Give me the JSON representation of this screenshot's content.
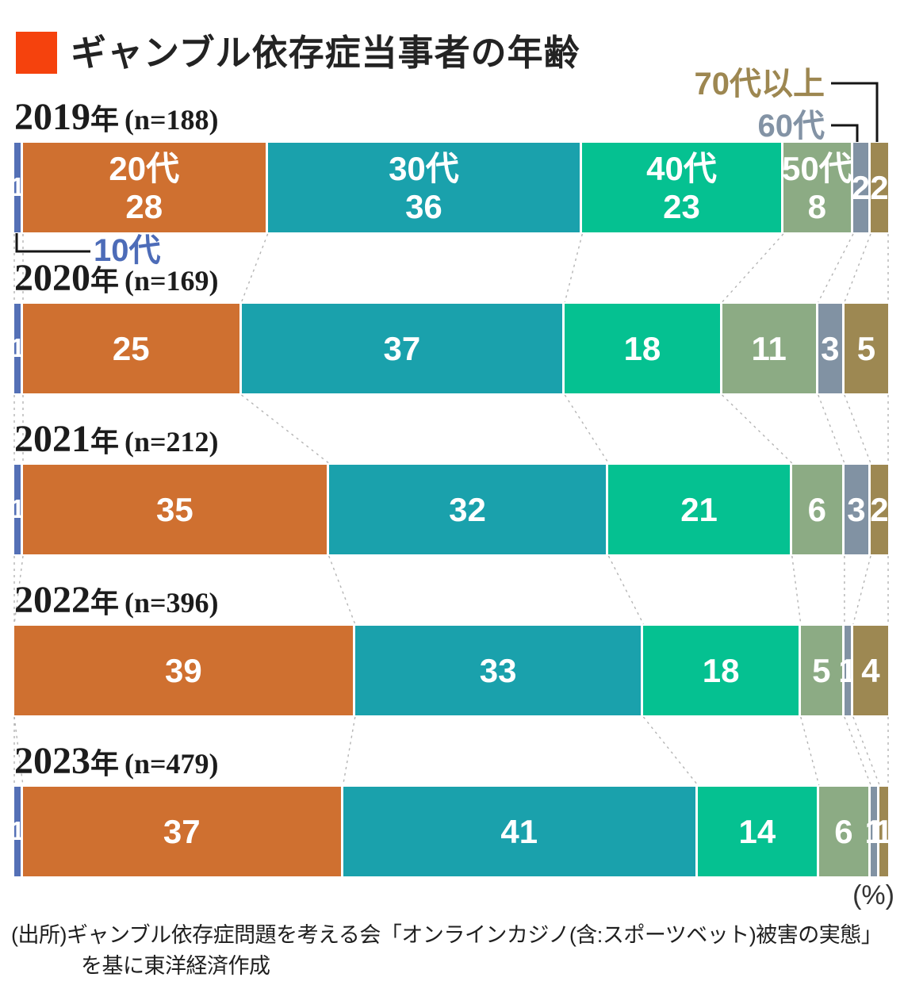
{
  "title": {
    "label": "ギャンブル依存症当事者の年齢"
  },
  "unit_label": "(%)",
  "source": {
    "line1": "(出所)ギャンブル依存症問題を考える会「オンラインカジノ(含:スポーツベット)被害の実態」",
    "line2": "を基に東洋経済作成"
  },
  "colors": {
    "accent_red": "#f5420d",
    "teens_blue": "#5470b6",
    "twenties_orange": "#cf7030",
    "thirties_teal": "#1aa1ac",
    "forties_green": "#05c191",
    "fifties_sage": "#8cab84",
    "sixties_gray": "#8192a3",
    "seventies_khaki": "#9d8852"
  },
  "callouts": {
    "teens": {
      "label": "10代",
      "color": "#4d6cb8"
    },
    "sixties": {
      "label": "60代",
      "color": "#8393a5"
    },
    "seventies": {
      "label": "70代以上",
      "color": "#9d8751"
    }
  },
  "chart_data": {
    "type": "bar",
    "stacked": true,
    "orientation": "horizontal",
    "unit": "%",
    "categories": [
      "10代",
      "20代",
      "30代",
      "40代",
      "50代",
      "60代",
      "70代以上"
    ],
    "palette": [
      "#5470b6",
      "#cf7030",
      "#1aa1ac",
      "#05c191",
      "#8cab84",
      "#8192a3",
      "#9d8852"
    ],
    "series": [
      {
        "year": "2019",
        "suffix": "年",
        "n": "(n=188)",
        "values": [
          1,
          28,
          36,
          23,
          8,
          2,
          2
        ],
        "labels": [
          [
            "1"
          ],
          [
            "20代",
            "28"
          ],
          [
            "30代",
            "36"
          ],
          [
            "40代",
            "23"
          ],
          [
            "50代",
            "8"
          ],
          [
            "2"
          ],
          [
            "2"
          ]
        ]
      },
      {
        "year": "2020",
        "suffix": "年",
        "n": "(n=169)",
        "values": [
          1,
          25,
          37,
          18,
          11,
          3,
          5
        ],
        "labels": [
          [
            "1"
          ],
          [
            "25"
          ],
          [
            "37"
          ],
          [
            "18"
          ],
          [
            "11"
          ],
          [
            "3"
          ],
          [
            "5"
          ]
        ]
      },
      {
        "year": "2021",
        "suffix": "年",
        "n": "(n=212)",
        "values": [
          1,
          35,
          32,
          21,
          6,
          3,
          2
        ],
        "labels": [
          [
            "1"
          ],
          [
            "35"
          ],
          [
            "32"
          ],
          [
            "21"
          ],
          [
            "6"
          ],
          [
            "3"
          ],
          [
            "2"
          ]
        ]
      },
      {
        "year": "2022",
        "suffix": "年",
        "n": "(n=396)",
        "values": [
          0,
          39,
          33,
          18,
          5,
          1,
          4
        ],
        "labels": [
          [],
          [
            "39"
          ],
          [
            "33"
          ],
          [
            "18"
          ],
          [
            "5"
          ],
          [
            "1"
          ],
          [
            "4"
          ]
        ]
      },
      {
        "year": "2023",
        "suffix": "年",
        "n": "(n=479)",
        "values": [
          1,
          37,
          41,
          14,
          6,
          1,
          1
        ],
        "labels": [
          [
            "1"
          ],
          [
            "37"
          ],
          [
            "41"
          ],
          [
            "14"
          ],
          [
            "6"
          ],
          [
            "1"
          ],
          [
            "1"
          ]
        ]
      }
    ]
  }
}
